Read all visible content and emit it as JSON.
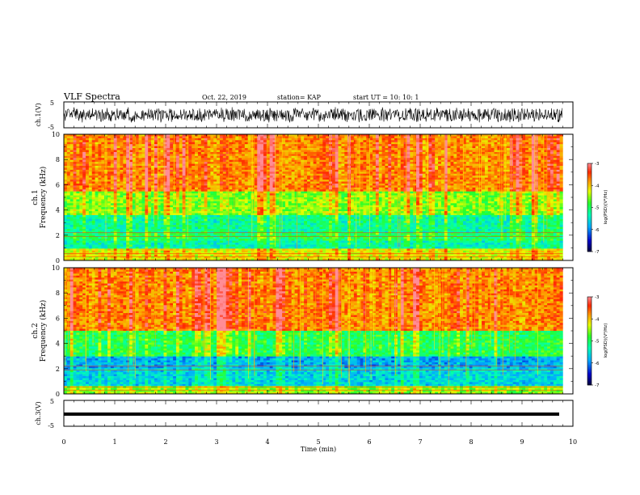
{
  "header": {
    "title": "VLF Spectra",
    "date": "Oct. 22, 2019",
    "station": "station= KAP",
    "start": "start  UT =   10: 10: 1"
  },
  "chart_data": [
    {
      "type": "line",
      "name": "ch1-waveform",
      "ylabel": "ch.1(V)",
      "ylim": [
        -5,
        5
      ],
      "ytick_labels": [
        "5",
        "-5"
      ],
      "xlim": [
        0,
        10
      ],
      "description": "dense noise trace spanning roughly -3 to 3 V"
    },
    {
      "type": "heatmap",
      "name": "ch1-spectrogram",
      "ylabel": "ch.1\nFrequency  (kHz)",
      "ylim": [
        0,
        10
      ],
      "yticks": [
        "0",
        "2",
        "4",
        "6",
        "8",
        "10"
      ],
      "xlim": [
        0,
        9.8
      ],
      "colorbar": {
        "label": "log(PSD)(V²/Hz)",
        "range": [
          -7,
          -3
        ],
        "ticks": [
          "-3",
          "-4",
          "-5",
          "-6",
          "-7"
        ]
      },
      "bands_khz": [
        {
          "from": 0,
          "to": 0.9,
          "level": -4.2
        },
        {
          "from": 0.9,
          "to": 1.5,
          "level": -5.3
        },
        {
          "from": 1.5,
          "to": 2.2,
          "level": -5.0
        },
        {
          "from": 2.2,
          "to": 3.6,
          "level": -5.2
        },
        {
          "from": 3.6,
          "to": 5.5,
          "level": -4.5
        },
        {
          "from": 5.5,
          "to": 10,
          "level": -3.7
        }
      ]
    },
    {
      "type": "heatmap",
      "name": "ch2-spectrogram",
      "ylabel": "ch.2\nFrequency  (kHz)",
      "ylim": [
        0,
        10
      ],
      "yticks": [
        "0",
        "2",
        "4",
        "6",
        "8",
        "10"
      ],
      "xlim": [
        0,
        9.8
      ],
      "colorbar": {
        "label": "log(PSD)(V²/Hz)",
        "range": [
          -7,
          -3
        ],
        "ticks": [
          "-3",
          "-4",
          "-5",
          "-6",
          "-7"
        ]
      },
      "bands_khz": [
        {
          "from": 0,
          "to": 0.6,
          "level": -4.5
        },
        {
          "from": 0.6,
          "to": 2.0,
          "level": -5.6
        },
        {
          "from": 2.0,
          "to": 3.0,
          "level": -5.8
        },
        {
          "from": 3.0,
          "to": 5.0,
          "level": -4.9
        },
        {
          "from": 5.0,
          "to": 10,
          "level": -3.7
        }
      ]
    },
    {
      "type": "line",
      "name": "ch3-waveform",
      "ylabel": "ch.3(V)",
      "ylim": [
        -5,
        5
      ],
      "ytick_labels": [
        "5",
        "-5"
      ],
      "xlim": [
        0,
        10
      ],
      "description": "nearly constant trace at about -0.5 V"
    }
  ],
  "xaxis": {
    "label": "Time  (min)",
    "ticks": [
      "0",
      "1",
      "2",
      "3",
      "4",
      "5",
      "6",
      "7",
      "8",
      "9",
      "10"
    ]
  },
  "colors": {
    "low": "#000090",
    "mid": "#00ff60",
    "high": "#ff2a00",
    "axes": "#000000"
  }
}
